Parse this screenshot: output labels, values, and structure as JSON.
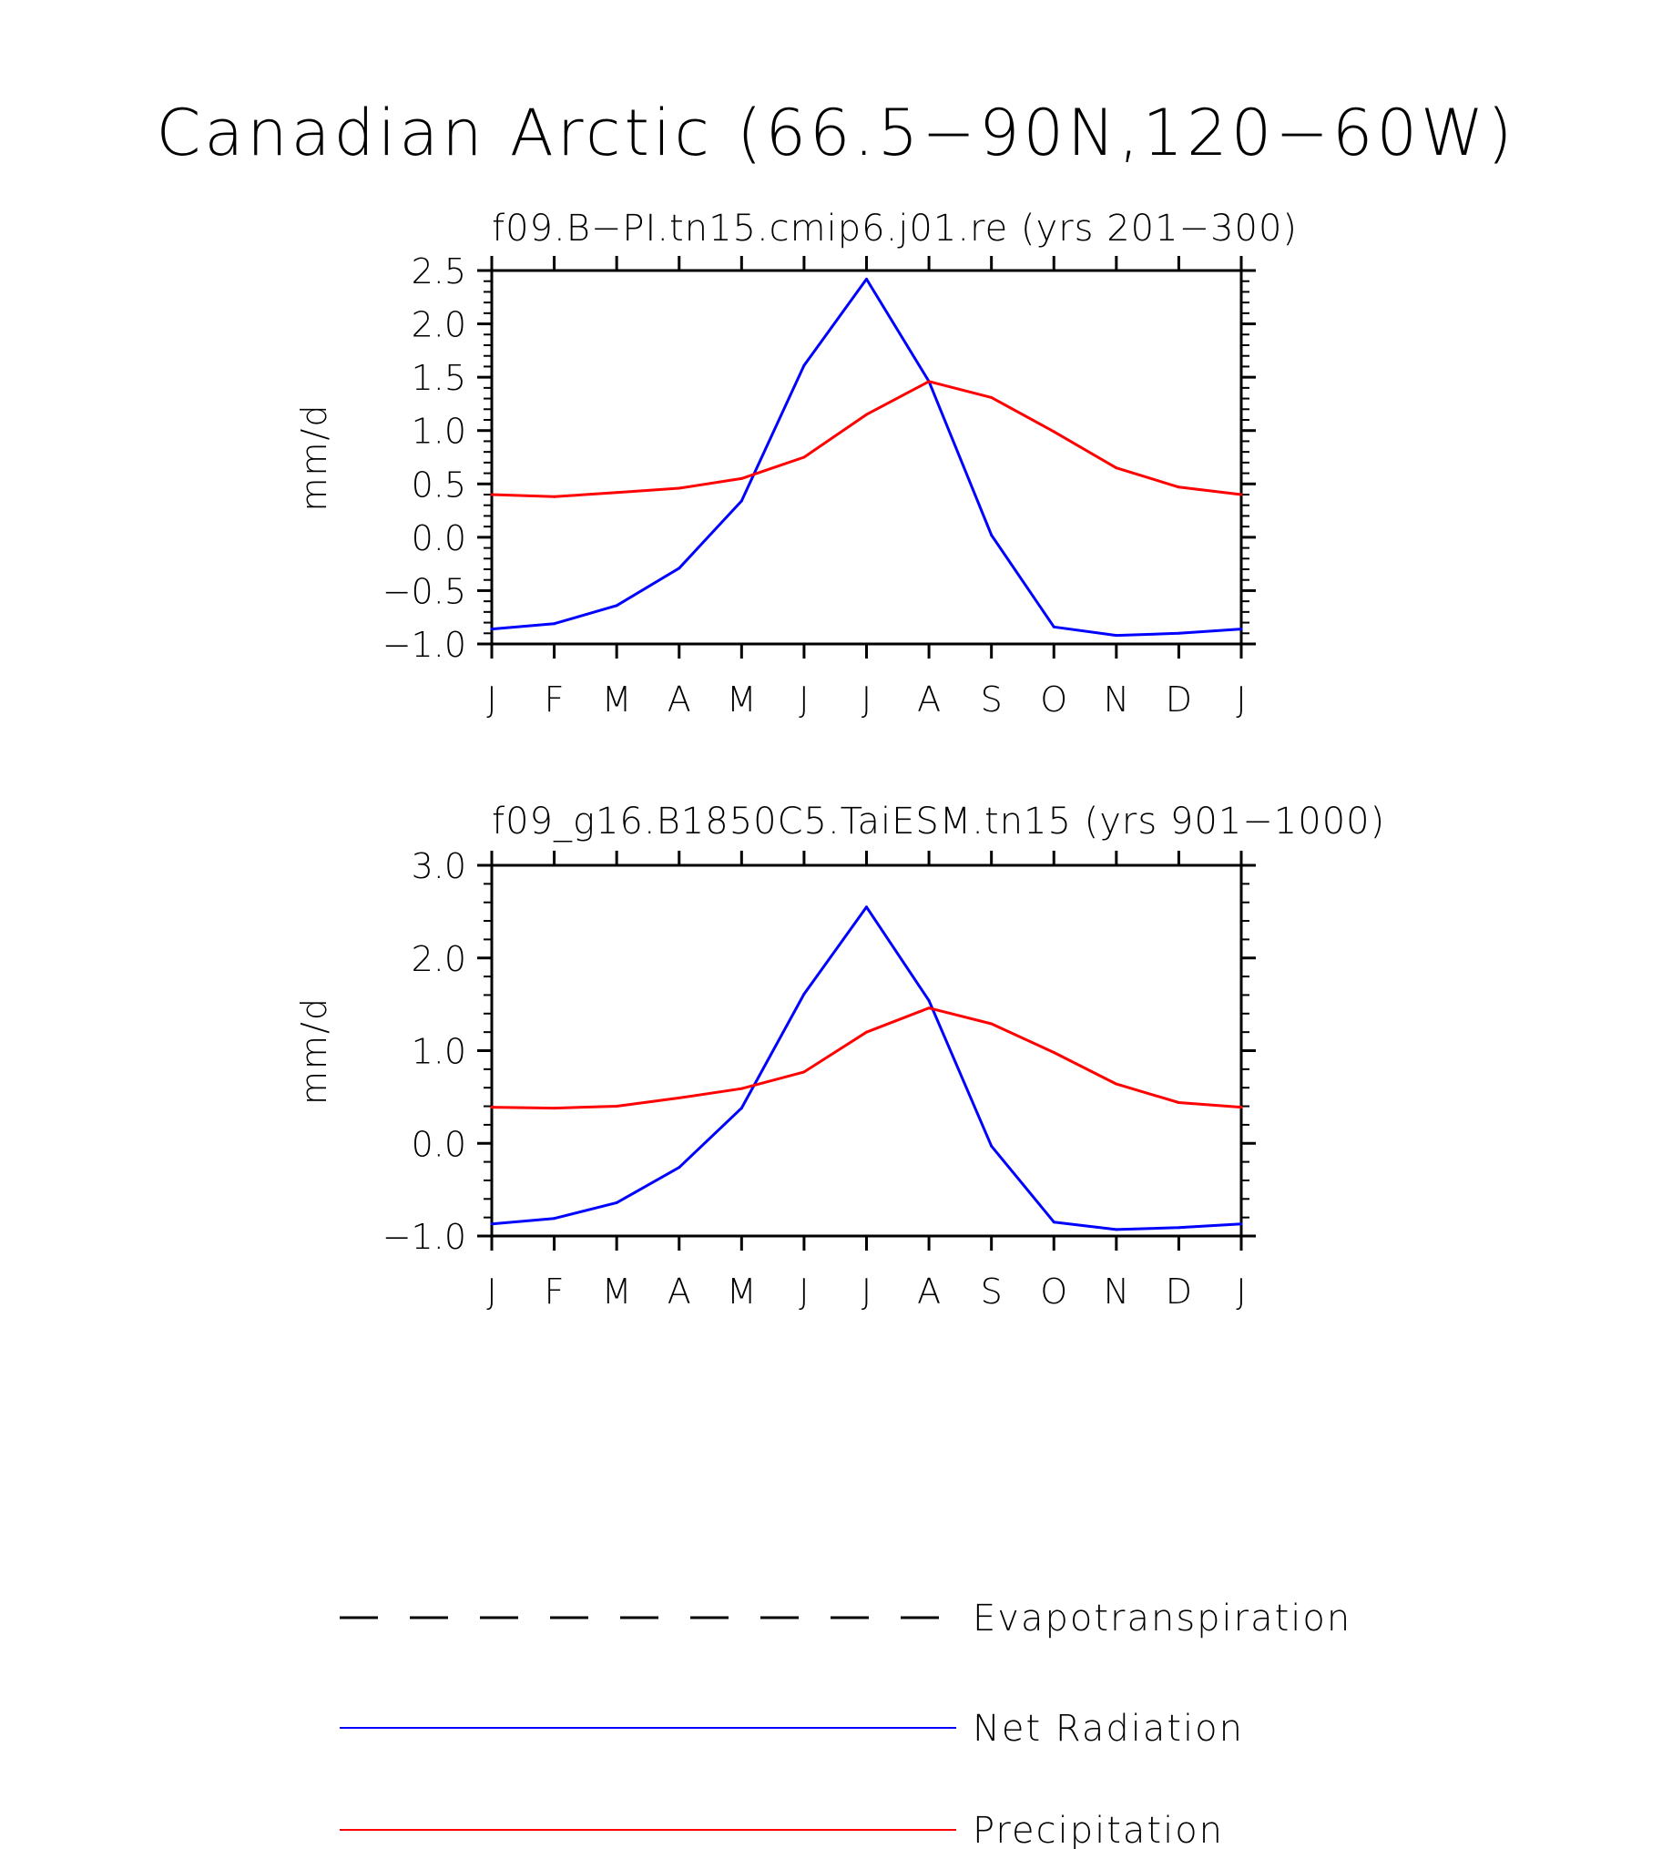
{
  "figure": {
    "title": "Canadian Arctic (66.5−90N,120−60W)"
  },
  "chart_data": [
    {
      "type": "line",
      "title": "f09.B−PI.tn15.cmip6.j01.re (yrs 201−300)",
      "xlabel": "",
      "ylabel": "mm/d",
      "categories": [
        "J",
        "F",
        "M",
        "A",
        "M",
        "J",
        "J",
        "A",
        "S",
        "O",
        "N",
        "D",
        "J"
      ],
      "ylim": [
        -1.0,
        2.5
      ],
      "yticks": [
        -1.0,
        -0.5,
        0.0,
        0.5,
        1.0,
        1.5,
        2.0,
        2.5
      ],
      "ytick_labels": [
        "−1.0",
        "−0.5",
        "0.0",
        "0.5",
        "1.0",
        "1.5",
        "2.0",
        "2.5"
      ],
      "series": [
        {
          "name": "Net Radiation",
          "color": "#0000ff",
          "values": [
            -0.86,
            -0.81,
            -0.64,
            -0.29,
            0.34,
            1.61,
            2.42,
            1.46,
            0.02,
            -0.84,
            -0.92,
            -0.9,
            -0.86
          ]
        },
        {
          "name": "Precipitation",
          "color": "#ff0000",
          "values": [
            0.4,
            0.38,
            0.42,
            0.46,
            0.55,
            0.75,
            1.15,
            1.46,
            1.31,
            0.99,
            0.65,
            0.47,
            0.4
          ]
        }
      ]
    },
    {
      "type": "line",
      "title": "f09_g16.B1850C5.TaiESM.tn15 (yrs 901−1000)",
      "xlabel": "",
      "ylabel": "mm/d",
      "categories": [
        "J",
        "F",
        "M",
        "A",
        "M",
        "J",
        "J",
        "A",
        "S",
        "O",
        "N",
        "D",
        "J"
      ],
      "ylim": [
        -1.0,
        3.0
      ],
      "yticks": [
        -1.0,
        0.0,
        1.0,
        2.0,
        3.0
      ],
      "ytick_labels": [
        "−1.0",
        "0.0",
        "1.0",
        "2.0",
        "3.0"
      ],
      "series": [
        {
          "name": "Net Radiation",
          "color": "#0000ff",
          "values": [
            -0.87,
            -0.81,
            -0.64,
            -0.26,
            0.38,
            1.61,
            2.55,
            1.54,
            -0.03,
            -0.85,
            -0.93,
            -0.91,
            -0.87
          ]
        },
        {
          "name": "Precipitation",
          "color": "#ff0000",
          "values": [
            0.39,
            0.38,
            0.4,
            0.49,
            0.59,
            0.77,
            1.2,
            1.46,
            1.29,
            0.98,
            0.64,
            0.44,
            0.39
          ]
        }
      ]
    }
  ],
  "legend": {
    "placement": "bottom",
    "items": [
      {
        "label": "Evapotranspiration",
        "color": "#000000",
        "style": "dashed"
      },
      {
        "label": "Net Radiation",
        "color": "#0000ff",
        "style": "solid"
      },
      {
        "label": "Precipitation",
        "color": "#ff0000",
        "style": "solid"
      }
    ]
  }
}
